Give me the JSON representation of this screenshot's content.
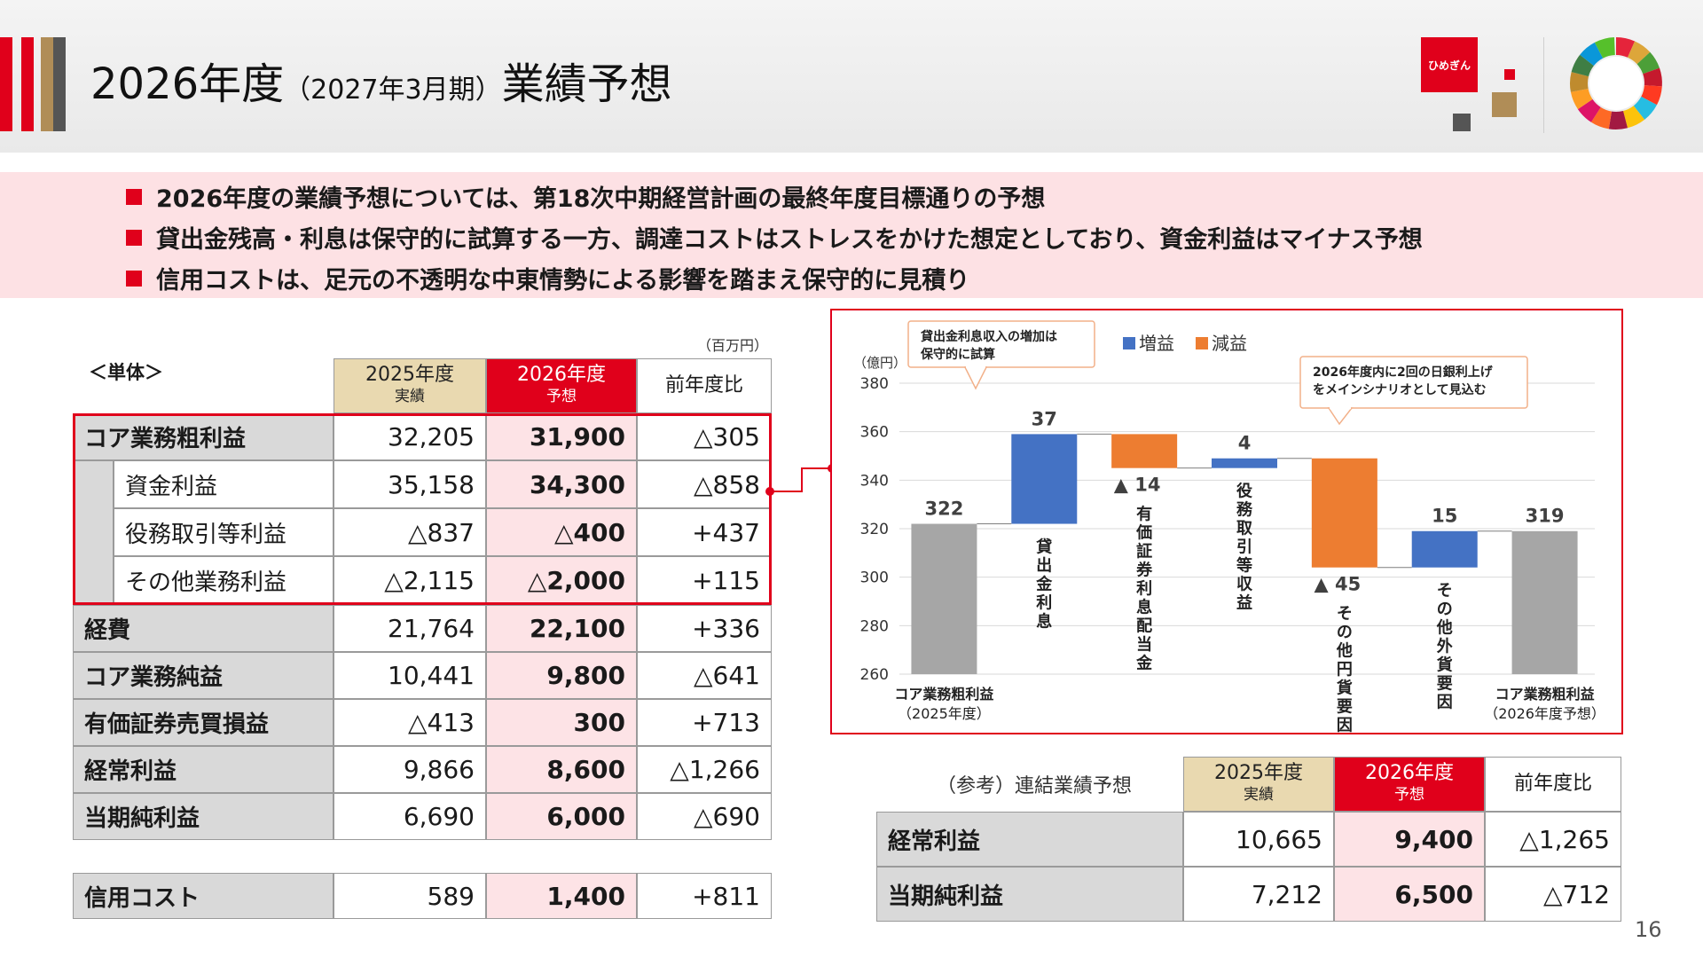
{
  "header": {
    "title_main": "2026年度",
    "title_sub": "（2027年3月期）",
    "title_tail": "業績予想",
    "logo_text": "ひめぎん",
    "colors": {
      "accent_red": "#e0001b",
      "gold": "#b08d57",
      "gray": "#555555"
    }
  },
  "bullets": [
    "2026年度の業績予想については、第18次中期経営計画の最終年度目標通りの予想",
    "貸出金残高・利息は保守的に試算する一方、調達コストはストレスをかけた想定としており、資金利益はマイナス予想",
    "信用コストは、足元の不透明な中東情勢による影響を踏まえ保守的に見積り"
  ],
  "main_table": {
    "unit": "（百万円）",
    "section": "＜単体＞",
    "columns": [
      {
        "line1": "2025年度",
        "line2": "実績"
      },
      {
        "line1": "2026年度",
        "line2": "予想"
      },
      {
        "line1": "前年度比",
        "line2": ""
      }
    ],
    "rows": [
      {
        "label": "コア業務粗利益",
        "actual": "32,205",
        "forecast": "31,900",
        "yoy": "△305"
      },
      {
        "label": "資金利益",
        "actual": "35,158",
        "forecast": "34,300",
        "yoy": "△858"
      },
      {
        "label": "役務取引等利益",
        "actual": "△837",
        "forecast": "△400",
        "yoy": "+437"
      },
      {
        "label": "その他業務利益",
        "actual": "△2,115",
        "forecast": "△2,000",
        "yoy": "+115"
      },
      {
        "label": "経費",
        "actual": "21,764",
        "forecast": "22,100",
        "yoy": "+336"
      },
      {
        "label": "コア業務純益",
        "actual": "10,441",
        "forecast": "9,800",
        "yoy": "△641"
      },
      {
        "label": "有価証券売買損益",
        "actual": "△413",
        "forecast": "300",
        "yoy": "+713"
      },
      {
        "label": "経常利益",
        "actual": "9,866",
        "forecast": "8,600",
        "yoy": "△1,266"
      },
      {
        "label": "当期純利益",
        "actual": "6,690",
        "forecast": "6,000",
        "yoy": "△690"
      }
    ],
    "credit": {
      "label": "信用コスト",
      "actual": "589",
      "forecast": "1,400",
      "yoy": "+811"
    }
  },
  "chart_data": {
    "type": "bar",
    "ylabel": "（億円）",
    "ylim": [
      260,
      380
    ],
    "yticks": [
      "260",
      "280",
      "300",
      "320",
      "340",
      "360",
      "380"
    ],
    "legend": [
      "増益",
      "減益"
    ],
    "legend_position": "top",
    "colors": {
      "total": "#a6a6a6",
      "increase": "#4472c4",
      "decrease": "#ed7d31"
    },
    "bars": [
      {
        "category": "コア業務粗利益",
        "category_sub": "（2025年度）",
        "kind": "total",
        "start": 260,
        "end": 322,
        "label": "322"
      },
      {
        "category": "貸出金利息",
        "kind": "increase",
        "start": 322,
        "end": 359,
        "label": "37"
      },
      {
        "category": "有価証券利息配当金",
        "kind": "decrease",
        "start": 359,
        "end": 345,
        "label": "▲ 14"
      },
      {
        "category": "役務取引等収益",
        "kind": "increase",
        "start": 345,
        "end": 349,
        "label": "4"
      },
      {
        "category": "その他円貨要因",
        "kind": "decrease",
        "start": 349,
        "end": 304,
        "label": "▲ 45"
      },
      {
        "category": "その他外貨要因",
        "kind": "increase",
        "start": 304,
        "end": 319,
        "label": "15"
      },
      {
        "category": "コア業務粗利益",
        "category_sub": "（2026年度予想）",
        "kind": "total",
        "start": 260,
        "end": 319,
        "label": "319"
      }
    ],
    "callouts": [
      {
        "text": [
          "貸出金利息収入の増加は",
          "保守的に試算"
        ]
      },
      {
        "text": [
          "2026年度内に2回の日銀利上げ",
          "をメインシナリオとして見込む"
        ]
      }
    ]
  },
  "ref_table": {
    "title": "（参考）連結業績予想",
    "columns": [
      {
        "line1": "2025年度",
        "line2": "実績"
      },
      {
        "line1": "2026年度",
        "line2": "予想"
      },
      {
        "line1": "前年度比",
        "line2": ""
      }
    ],
    "rows": [
      {
        "label": "経常利益",
        "actual": "10,665",
        "forecast": "9,400",
        "yoy": "△1,265"
      },
      {
        "label": "当期純利益",
        "actual": "7,212",
        "forecast": "6,500",
        "yoy": "△712"
      }
    ]
  },
  "page_number": "16"
}
